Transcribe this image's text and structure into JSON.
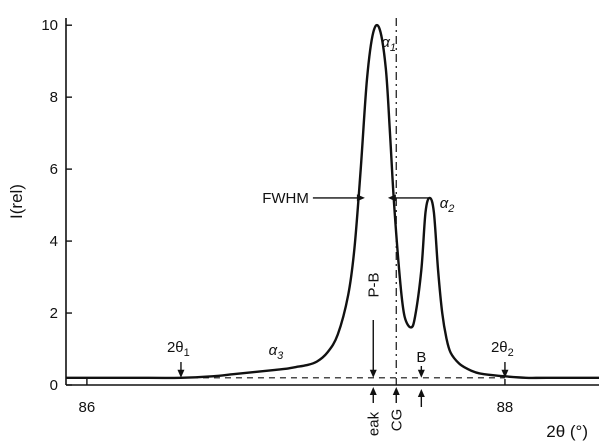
{
  "chart_data": {
    "type": "line",
    "xlabel": "2θ (°)",
    "ylabel": "I(rel)",
    "xlim": [
      85.9,
      88.45
    ],
    "ylim": [
      0,
      10.2
    ],
    "x_ticks": [
      {
        "value": 86,
        "label": "86"
      },
      {
        "value": 88,
        "label": "88"
      }
    ],
    "y_ticks": [
      {
        "value": 0,
        "label": "0"
      },
      {
        "value": 2,
        "label": "2"
      },
      {
        "value": 4,
        "label": "4"
      },
      {
        "value": 6,
        "label": "6"
      },
      {
        "value": 8,
        "label": "8"
      },
      {
        "value": 10,
        "label": "10"
      }
    ],
    "series": [
      {
        "x": [
          85.9,
          86.2,
          86.45,
          86.6,
          86.7,
          86.8,
          86.9,
          86.95,
          87.0,
          87.05,
          87.1,
          87.15,
          87.2,
          87.25,
          87.28,
          87.31,
          87.34,
          87.37,
          87.4,
          87.43,
          87.45,
          87.47,
          87.5,
          87.52,
          87.55,
          87.57,
          87.6,
          87.62,
          87.64,
          87.66,
          87.68,
          87.7,
          87.72,
          87.74,
          87.78,
          87.82,
          87.86,
          87.9,
          88.0,
          88.1,
          88.2,
          88.45
        ],
        "y": [
          0.2,
          0.2,
          0.2,
          0.24,
          0.3,
          0.36,
          0.42,
          0.45,
          0.5,
          0.55,
          0.65,
          0.9,
          1.4,
          2.5,
          3.8,
          6.0,
          8.5,
          9.8,
          9.9,
          8.8,
          7.0,
          5.0,
          2.8,
          1.9,
          1.6,
          1.9,
          3.2,
          4.8,
          5.2,
          4.8,
          3.2,
          2.0,
          1.3,
          0.9,
          0.6,
          0.45,
          0.35,
          0.3,
          0.24,
          0.2,
          0.2,
          0.2
        ]
      }
    ],
    "baseline_y": 0.2,
    "annotations": {
      "alpha1": {
        "text": "α",
        "sub": "1",
        "x": 87.38,
        "y": 9.9
      },
      "alpha2": {
        "text": "α",
        "sub": "2",
        "x": 87.64,
        "y": 5.2
      },
      "alpha3": {
        "text": "α",
        "sub": "3",
        "x": 86.85,
        "y": 0.45
      },
      "fwhm": {
        "text": "FWHM",
        "y": 5.2,
        "x_left": 87.33,
        "x_right": 87.44
      },
      "pb": {
        "text": "P-B",
        "x": 87.37
      },
      "peak": {
        "text": "eak",
        "x": 87.37
      },
      "cg": {
        "text": "CG",
        "x": 87.48
      },
      "b": {
        "text": "B",
        "x": 87.6
      },
      "two_theta_1": {
        "text": "2θ",
        "sub": "1",
        "x": 86.45
      },
      "two_theta_2": {
        "text": "2θ",
        "sub": "2",
        "x": 88.0
      }
    }
  }
}
